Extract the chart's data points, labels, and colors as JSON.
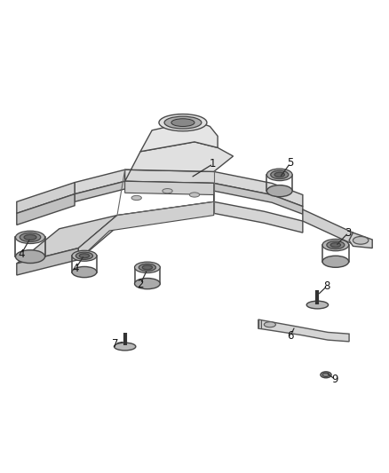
{
  "background_color": "#ffffff",
  "figsize": [
    4.38,
    5.33
  ],
  "dpi": 100,
  "label_fontsize": 8.5,
  "label_color": "#111111",
  "line_color": "#444444"
}
